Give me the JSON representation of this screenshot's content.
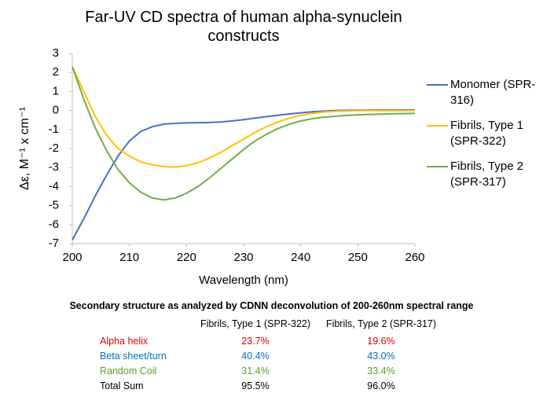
{
  "chart_data": {
    "type": "line",
    "title": "Far-UV CD spectra of human alpha-synuclein constructs",
    "x_label": "Wavelength (nm)",
    "y_label": "Δε, M⁻¹ x cm⁻¹",
    "x": [
      200,
      202,
      204,
      206,
      208,
      210,
      212,
      214,
      216,
      218,
      220,
      222,
      224,
      226,
      228,
      230,
      232,
      234,
      236,
      238,
      240,
      242,
      244,
      246,
      248,
      250,
      252,
      254,
      256,
      258,
      260
    ],
    "series": [
      {
        "name": "Monomer (SPR-316)",
        "color": "#4472c4",
        "values": [
          -6.8,
          -5.7,
          -4.5,
          -3.4,
          -2.4,
          -1.6,
          -1.1,
          -0.85,
          -0.72,
          -0.67,
          -0.65,
          -0.64,
          -0.63,
          -0.6,
          -0.55,
          -0.48,
          -0.4,
          -0.32,
          -0.25,
          -0.18,
          -0.12,
          -0.07,
          -0.03,
          0,
          0.01,
          0.02,
          0.02,
          0.03,
          0.03,
          0.03,
          0.03
        ]
      },
      {
        "name": "Fibrils, Type 1 (SPR-322)",
        "color": "#ffc000",
        "values": [
          2.3,
          1.0,
          -0.3,
          -1.3,
          -2.0,
          -2.4,
          -2.7,
          -2.85,
          -2.95,
          -2.97,
          -2.9,
          -2.75,
          -2.5,
          -2.2,
          -1.85,
          -1.5,
          -1.15,
          -0.85,
          -0.6,
          -0.4,
          -0.25,
          -0.15,
          -0.08,
          -0.04,
          -0.02,
          0,
          0,
          0,
          0,
          0,
          0
        ]
      },
      {
        "name": "Fibrils, Type 2 (SPR-317)",
        "color": "#70ad47",
        "values": [
          2.3,
          0.6,
          -0.9,
          -2.1,
          -3.1,
          -3.8,
          -4.3,
          -4.6,
          -4.7,
          -4.6,
          -4.35,
          -4.0,
          -3.55,
          -3.05,
          -2.55,
          -2.05,
          -1.6,
          -1.25,
          -0.95,
          -0.72,
          -0.55,
          -0.43,
          -0.35,
          -0.3,
          -0.26,
          -0.23,
          -0.21,
          -0.19,
          -0.17,
          -0.16,
          -0.15
        ]
      }
    ],
    "xlim": [
      200,
      260
    ],
    "xticks": [
      200,
      210,
      220,
      230,
      240,
      250,
      260
    ],
    "ylim": [
      -7,
      3
    ],
    "yticks": [
      -7,
      -6,
      -5,
      -4,
      -3,
      -2,
      -1,
      0,
      1,
      2,
      3
    ],
    "grid": false,
    "legend": "right"
  },
  "table": {
    "title": "Secondary structure as analyzed by CDNN deconvolution of 200-260nm spectral range",
    "header": [
      "Fibrils, Type 1 (SPR-322)",
      "Fibrils, Type 2 (SPR-317)"
    ],
    "rows": [
      [
        "Alpha helix",
        "23.7%",
        "19.6%"
      ],
      [
        "Beta sheet/turn",
        "40.4%",
        "43.0%"
      ],
      [
        "Random Coil",
        "31.4%",
        "33.4%"
      ],
      [
        "Total Sum",
        "95.5%",
        "96.0%"
      ]
    ]
  }
}
